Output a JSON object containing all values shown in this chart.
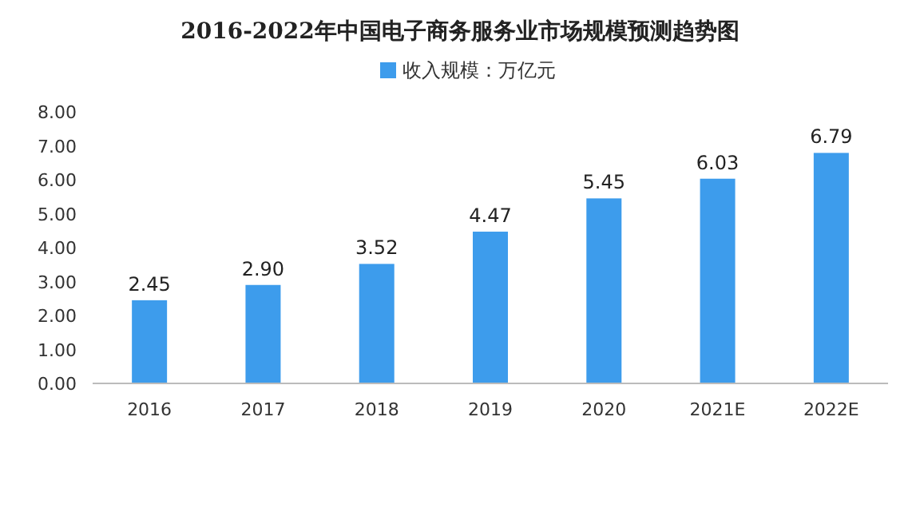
{
  "chart_data": {
    "type": "bar",
    "title": "2016-2022年中国电子商务服务业市场规模预测趋势图",
    "categories": [
      "2016",
      "2017",
      "2018",
      "2019",
      "2020",
      "2021E",
      "2022E"
    ],
    "series": [
      {
        "name": "收入规模：万亿元",
        "color": "#3d9cec",
        "values": [
          2.45,
          2.9,
          3.52,
          4.47,
          5.45,
          6.03,
          6.79
        ],
        "value_labels": [
          "2.45",
          "2.90",
          "3.52",
          "4.47",
          "5.45",
          "6.03",
          "6.79"
        ]
      }
    ],
    "ylim": [
      0,
      8
    ],
    "yticks": [
      {
        "value": 0,
        "label": "0.00"
      },
      {
        "value": 1,
        "label": "1.00"
      },
      {
        "value": 2,
        "label": "2.00"
      },
      {
        "value": 3,
        "label": "3.00"
      },
      {
        "value": 4,
        "label": "4.00"
      },
      {
        "value": 5,
        "label": "5.00"
      },
      {
        "value": 6,
        "label": "6.00"
      },
      {
        "value": 7,
        "label": "7.00"
      },
      {
        "value": 8,
        "label": "8.00"
      }
    ],
    "legend": "top",
    "grid": false
  }
}
